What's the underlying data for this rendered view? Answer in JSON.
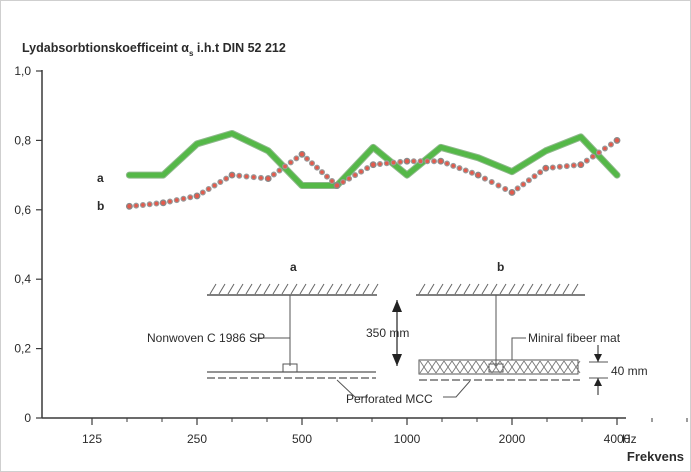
{
  "chart_data": {
    "type": "line",
    "title": "Lydabsorbtionskoefficeint α",
    "title_subscript": "s",
    "title_suffix": " i.h.t DIN 52 212",
    "xlabel": "Frekvens",
    "x_unit": "Hz",
    "x_scale": "log",
    "x_ticks": [
      125,
      250,
      500,
      1000,
      2000,
      4000
    ],
    "x_tick_labels": [
      "125",
      "250",
      "500",
      "1000",
      "2000",
      "4000"
    ],
    "y_ticks": [
      0,
      0.2,
      0.4,
      0.6,
      0.8,
      1.0
    ],
    "y_tick_labels": [
      "0",
      "0,2",
      "0,4",
      "0,6",
      "0,8",
      "1,0"
    ],
    "ylim": [
      0,
      1.0
    ],
    "grid": false,
    "series": [
      {
        "name": "a",
        "color": "#55b848",
        "style": "thick-line",
        "x": [
          160,
          200,
          250,
          315,
          400,
          500,
          630,
          800,
          1000,
          1250,
          1600,
          2000,
          2500,
          3150,
          4000
        ],
        "y": [
          0.7,
          0.7,
          0.79,
          0.82,
          0.77,
          0.67,
          0.67,
          0.78,
          0.7,
          0.78,
          0.75,
          0.71,
          0.77,
          0.81,
          0.7
        ]
      },
      {
        "name": "b",
        "color": "#e35a4c",
        "style": "dotted",
        "x": [
          160,
          200,
          250,
          315,
          400,
          500,
          630,
          800,
          1000,
          1250,
          1600,
          2000,
          2500,
          3150,
          4000
        ],
        "y": [
          0.61,
          0.62,
          0.64,
          0.7,
          0.69,
          0.76,
          0.67,
          0.73,
          0.74,
          0.74,
          0.7,
          0.65,
          0.72,
          0.73,
          0.8
        ]
      }
    ],
    "annotations": {
      "label_a": "a",
      "label_b": "b",
      "nonwoven": "Nonwoven C 1986 SP",
      "depth": "350 mm",
      "mineral": "Miniral fibeer mat",
      "thickness": "40 mm",
      "perforated": "Perforated MCC"
    }
  }
}
